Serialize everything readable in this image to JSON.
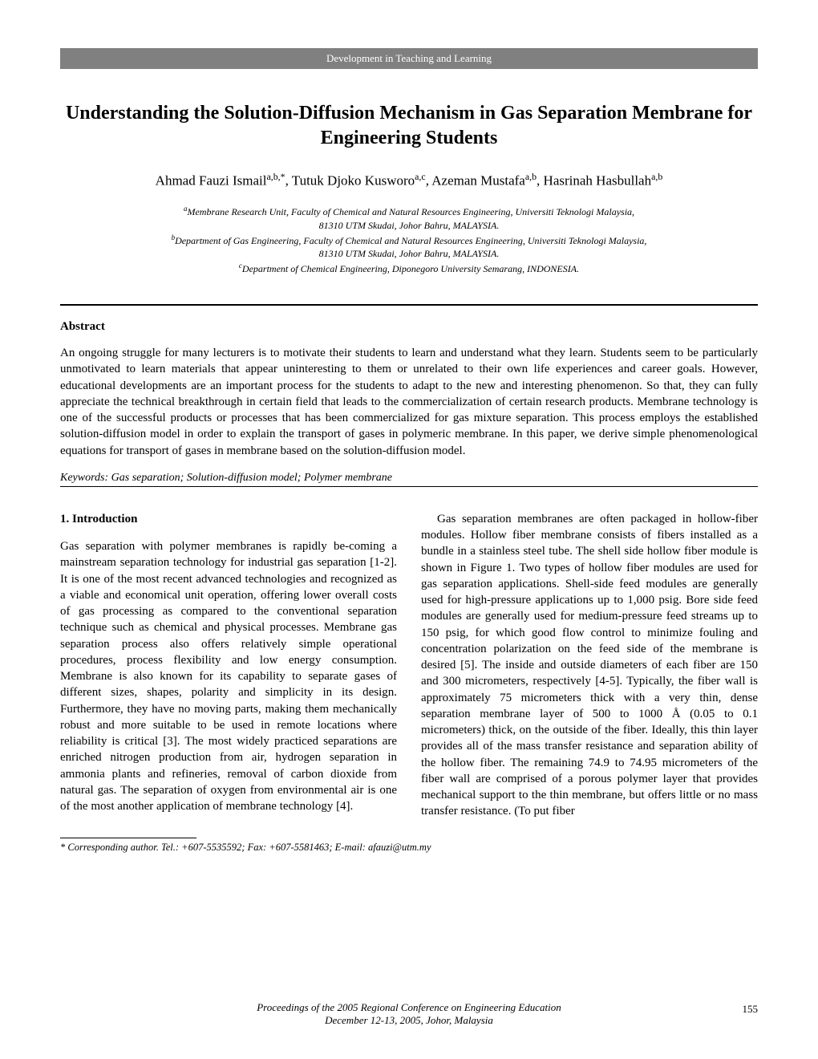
{
  "header_bar": "Development in Teaching and Learning",
  "title": "Understanding the Solution-Diffusion Mechanism in Gas Separation Membrane for Engineering Students",
  "authors_html": "Ahmad Fauzi Ismail<sup>a,b,*</sup>, Tutuk Djoko Kusworo<sup>a,c</sup>, Azeman Mustafa<sup>a,b</sup>, Hasrinah Hasbullah<sup>a,b</sup>",
  "affiliations": {
    "line1_sup": "a",
    "line1": "Membrane Research Unit, Faculty of Chemical and Natural Resources Engineering, Universiti Teknologi Malaysia,",
    "line2": "81310 UTM Skudai, Johor Bahru, MALAYSIA.",
    "line3_sup": "b",
    "line3": "Department of Gas Engineering, Faculty of Chemical and Natural Resources Engineering, Universiti Teknologi Malaysia,",
    "line4": "81310 UTM Skudai, Johor Bahru, MALAYSIA.",
    "line5_sup": "c",
    "line5": "Department of Chemical Engineering, Diponegoro University Semarang, INDONESIA."
  },
  "abstract_heading": "Abstract",
  "abstract_text": "An ongoing struggle for many lecturers is to motivate their students to learn and understand what they learn. Students seem to be particularly unmotivated to learn materials that appear uninteresting to them or unrelated to their own life experiences and career goals. However, educational developments are an important process for the students to adapt to the new and interesting phenomenon.  So that, they can fully appreciate the technical breakthrough in certain field that leads to the commercialization of certain research products. Membrane technology is one of the successful products or processes that has been commercialized for gas mixture separation. This process employs the established solution-diffusion model in order to explain the transport of gases in polymeric membrane. In this paper, we derive simple phenomenological equations for transport of gases in membrane based on the solution-diffusion model.",
  "keywords": "Keywords: Gas separation; Solution-diffusion model; Polymer membrane",
  "section1_heading": "1.   Introduction",
  "column1_text": "Gas separation with polymer membranes is rapidly be-coming a mainstream separation technology for industrial gas separation [1-2]. It is one of the most recent advanced technologies and recognized as a viable and economical unit operation, offering lower overall costs of gas processing as compared to the conventional separation technique such as chemical and physical processes. Membrane gas separation process also offers relatively simple operational procedures, process flexibility and low energy consumption. Membrane is also known for its capability to separate gases of different sizes, shapes, polarity and simplicity in its design.  Furthermore, they have no moving parts, making them mechanically robust and more suitable to be used in remote locations where reliability is critical [3]. The most widely practiced separations are enriched nitrogen production from air, hydrogen separation in ammonia plants and refineries, removal of carbon dioxide from natural gas. The separation of oxygen from environmental air is one of the most another application of membrane technology [4].",
  "column2_text": "Gas separation membranes are often packaged in hollow-fiber modules. Hollow fiber membrane consists of fibers installed as a bundle in a stainless steel tube. The shell side hollow fiber module is shown in Figure 1. Two types of hollow fiber modules are used for gas separation applications. Shell-side feed modules are generally used for high-pressure applications up to 1,000 psig. Bore side feed modules are generally used for medium-pressure feed streams up to 150 psig, for which good flow control to minimize fouling and concentration polarization on the feed side of the membrane is desired [5]. The inside and outside diameters of each fiber are 150 and 300 micrometers, respectively [4-5].  Typically, the fiber wall is approximately 75 micrometers thick with a very thin, dense separation membrane layer of 500 to 1000 Å (0.05 to 0.1 micrometers) thick, on the outside of the fiber.  Ideally, this thin layer provides all of the mass transfer resistance and separation ability of the hollow fiber. The remaining 74.9 to 74.95 micrometers of the fiber wall are comprised of a porous polymer layer that provides mechanical support to the thin membrane, but offers little or no mass transfer resistance. (To put fiber",
  "footnote": "* Corresponding author. Tel.: +607-5535592; Fax: +607-5581463; E-mail: afauzi@utm.my",
  "footer": {
    "line1": "Proceedings of the 2005 Regional Conference on Engineering Education",
    "line2": "December 12-13, 2005, Johor, Malaysia",
    "page_number": "155"
  }
}
